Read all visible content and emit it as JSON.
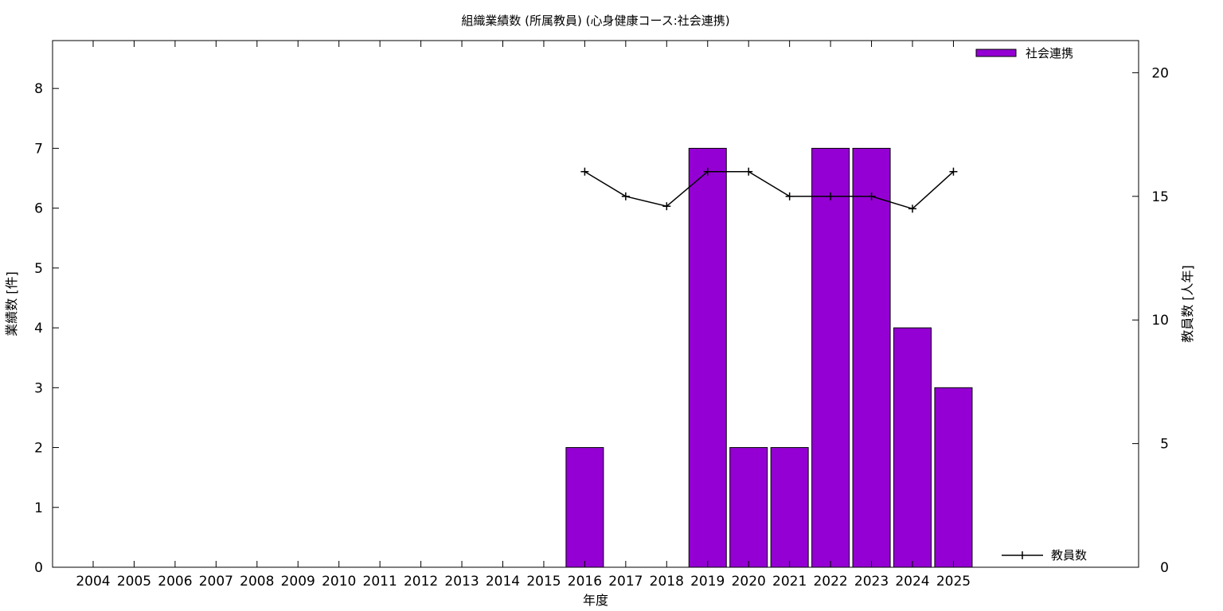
{
  "chart_data": {
    "type": "bar",
    "title": "組織業績数 (所属教員) (心身健康コース:社会連携)",
    "xlabel": "年度",
    "ylabel": "業績数 [件]",
    "y2label": "教員数 [人年]",
    "categories": [
      "2004",
      "2005",
      "2006",
      "2007",
      "2008",
      "2009",
      "2010",
      "2011",
      "2012",
      "2013",
      "2014",
      "2015",
      "2016",
      "2017",
      "2018",
      "2019",
      "2020",
      "2021",
      "2022",
      "2023",
      "2024",
      "2025"
    ],
    "ylim": [
      0,
      8.8
    ],
    "yticks": [
      0,
      1,
      2,
      3,
      4,
      5,
      6,
      7,
      8
    ],
    "y2lim": [
      0,
      21.3
    ],
    "y2ticks": [
      0,
      5,
      10,
      15,
      20
    ],
    "grid": false,
    "series": [
      {
        "name": "社会連携",
        "type": "bar",
        "axis": "left",
        "color": "#9400d3",
        "values": [
          0,
          0,
          0,
          0,
          0,
          0,
          0,
          0,
          0,
          0,
          0,
          0,
          2,
          0,
          0,
          7,
          2,
          2,
          7,
          7,
          4,
          3
        ]
      },
      {
        "name": "教員数",
        "type": "line",
        "axis": "right",
        "color": "#000000",
        "values": [
          null,
          null,
          null,
          null,
          null,
          null,
          null,
          null,
          null,
          null,
          null,
          null,
          16,
          15,
          14.6,
          16,
          16,
          15,
          15,
          15,
          14.5,
          16
        ]
      }
    ],
    "legend": {
      "bar_position": "top-right",
      "line_position": "bottom-right"
    }
  }
}
